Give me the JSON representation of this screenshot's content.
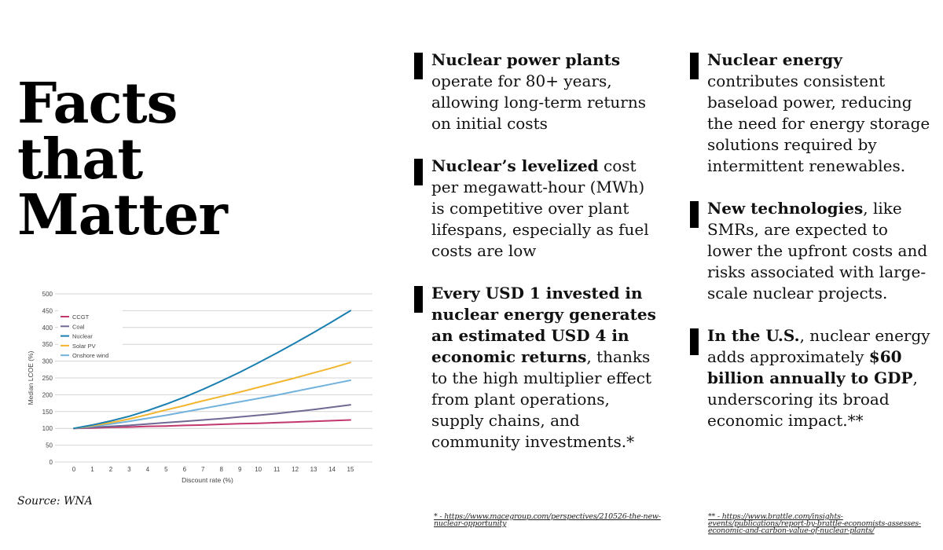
{
  "title": {
    "lines": [
      "Facts",
      "that",
      "Matter"
    ]
  },
  "source": "Source: WNA",
  "facts_col1": [
    {
      "bold": "Nuclear power plants",
      "rest": " operate for 80+ years, allowing long-term returns on initial costs"
    },
    {
      "bold": "Nuclear’s levelized",
      "rest": " cost per megawatt-hour (MWh) is competitive over plant lifespans, especially as fuel costs are low"
    },
    {
      "bold": "Every USD 1 invested in nuclear energy generates an estimated USD 4 in economic returns",
      "rest": ", thanks to the high multiplier effect from plant operations, supply chains, and community investments.*"
    }
  ],
  "facts_col2": [
    {
      "bold": "Nuclear energy",
      "rest": " contributes consistent baseload power, reducing the need for energy storage solutions required by intermittent renewables."
    },
    {
      "bold": "New technologies",
      "rest": ", like SMRs, are expected to lower the upfront costs and risks associated with large-scale nuclear projects."
    },
    {
      "bold": "In the U.S.",
      "rest1": ", nuclear energy adds approximately ",
      "bold2": "$60 billion annually to GDP",
      "rest2": ", underscoring its broad economic impact.**"
    }
  ],
  "footnotes": [
    " * - https://www.macegroup.com/perspectives/210526-the-new-nuclear-opportunity",
    " ** - https://www.brattle.com/insights-events/publications/report-by-brattle-economists-assesses-economic-and-carbon-value-of-nuclear-plants/"
  ],
  "chart_data": {
    "type": "line",
    "title": "",
    "xlabel": "Discount rate (%)",
    "ylabel": "Median LCOE (%)",
    "x": [
      0,
      1,
      2,
      3,
      4,
      5,
      6,
      7,
      8,
      9,
      10,
      11,
      12,
      13,
      14,
      15
    ],
    "xticks": [
      "0",
      "1",
      "2",
      "3",
      "4",
      "5",
      "6",
      "7",
      "8",
      "9",
      "10",
      "11",
      "12",
      "13",
      "14",
      "15"
    ],
    "yticks": [
      "0",
      "50",
      "100",
      "150",
      "200",
      "250",
      "300",
      "350",
      "400",
      "450",
      "500"
    ],
    "ylim": [
      0,
      500
    ],
    "xlim": [
      0,
      15
    ],
    "grid": true,
    "legend_position": "top-left",
    "series": [
      {
        "name": "CCGT",
        "color": "#c2386e",
        "values": [
          100,
          101,
          103,
          104,
          106,
          107,
          109,
          110,
          112,
          114,
          115,
          117,
          119,
          121,
          123,
          125
        ]
      },
      {
        "name": "Coal",
        "color": "#6e6a93",
        "values": [
          100,
          103,
          106,
          109,
          113,
          117,
          121,
          125,
          129,
          134,
          139,
          144,
          150,
          156,
          163,
          170
        ]
      },
      {
        "name": "Nuclear",
        "color": "#1a7fb0",
        "values": [
          100,
          110,
          122,
          136,
          153,
          172,
          193,
          216,
          241,
          267,
          295,
          324,
          354,
          385,
          417,
          450
        ]
      },
      {
        "name": "Solar PV",
        "color": "#f2b630",
        "values": [
          100,
          108,
          117,
          128,
          141,
          155,
          168,
          182,
          195,
          208,
          222,
          236,
          250,
          265,
          280,
          296
        ]
      },
      {
        "name": "Onshore wind",
        "color": "#72b2dc",
        "values": [
          100,
          106,
          113,
          121,
          130,
          139,
          149,
          159,
          169,
          179,
          189,
          199,
          210,
          221,
          232,
          243
        ]
      }
    ]
  }
}
